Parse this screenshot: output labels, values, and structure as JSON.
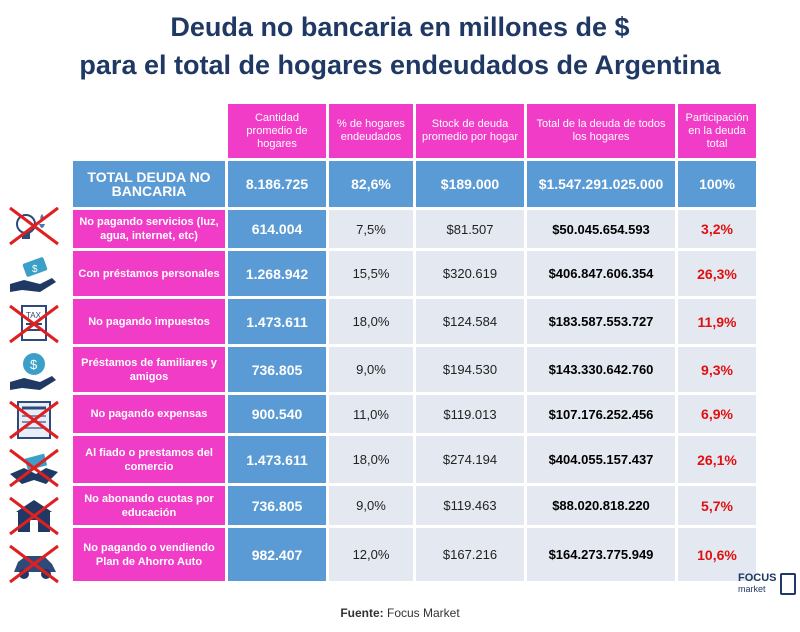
{
  "title": {
    "line1": "Deuda no bancaria en millones de $",
    "line2": "para el total de hogares endeudados de Argentina"
  },
  "chart_data": {
    "type": "table",
    "columns": [
      "Cantidad promedio de hogares",
      "% de hogares endeudados",
      "Stock de deuda promedio por hogar",
      "Total de la deuda de todos los hogares",
      "Participación en la deuda total"
    ],
    "total_row": {
      "label": "TOTAL DEUDA NO BANCARIA",
      "values": [
        "8.186.725",
        "82,6%",
        "$189.000",
        "$1.547.291.025.000",
        "100%"
      ]
    },
    "rows": [
      {
        "label": "No pagando servicios (luz, agua, internet, etc)",
        "values": [
          "614.004",
          "7,5%",
          "$81.507",
          "$50.045.654.593",
          "3,2%"
        ]
      },
      {
        "label": "Con préstamos personales",
        "values": [
          "1.268.942",
          "15,5%",
          "$320.619",
          "$406.847.606.354",
          "26,3%"
        ]
      },
      {
        "label": "No pagando impuestos",
        "values": [
          "1.473.611",
          "18,0%",
          "$124.584",
          "$183.587.553.727",
          "11,9%"
        ]
      },
      {
        "label": "Préstamos de familiares y amigos",
        "values": [
          "736.805",
          "9,0%",
          "$194.530",
          "$143.330.642.760",
          "9,3%"
        ]
      },
      {
        "label": "No pagando expensas",
        "values": [
          "900.540",
          "11,0%",
          "$119.013",
          "$107.176.252.456",
          "6,9%"
        ]
      },
      {
        "label": "Al fiado o prestamos del comercio",
        "values": [
          "1.473.611",
          "18,0%",
          "$274.194",
          "$404.055.157.437",
          "26,1%"
        ]
      },
      {
        "label": "No abonando cuotas por educación",
        "values": [
          "736.805",
          "9,0%",
          "$119.463",
          "$88.020.818.220",
          "5,7%"
        ]
      },
      {
        "label": "No pagando o vendiendo Plan de Ahorro Auto",
        "values": [
          "982.407",
          "12,0%",
          "$167.216",
          "$164.273.775.949",
          "10,6%"
        ]
      }
    ]
  },
  "icons": [
    "no-services-icon",
    "personal-loan-icon",
    "no-tax-icon",
    "family-loan-icon",
    "no-expensas-icon",
    "store-credit-icon",
    "no-education-icon",
    "no-car-plan-icon"
  ],
  "footer": {
    "source_label": "Fuente:",
    "source_value": "Focus Market"
  },
  "logo": {
    "line1": "FOCUS",
    "line2": "market"
  },
  "colors": {
    "header": "#f03cc6",
    "blue": "#5b9bd5",
    "cell": "#e4e8f0",
    "title": "#1f3864",
    "red": "#e01010"
  }
}
